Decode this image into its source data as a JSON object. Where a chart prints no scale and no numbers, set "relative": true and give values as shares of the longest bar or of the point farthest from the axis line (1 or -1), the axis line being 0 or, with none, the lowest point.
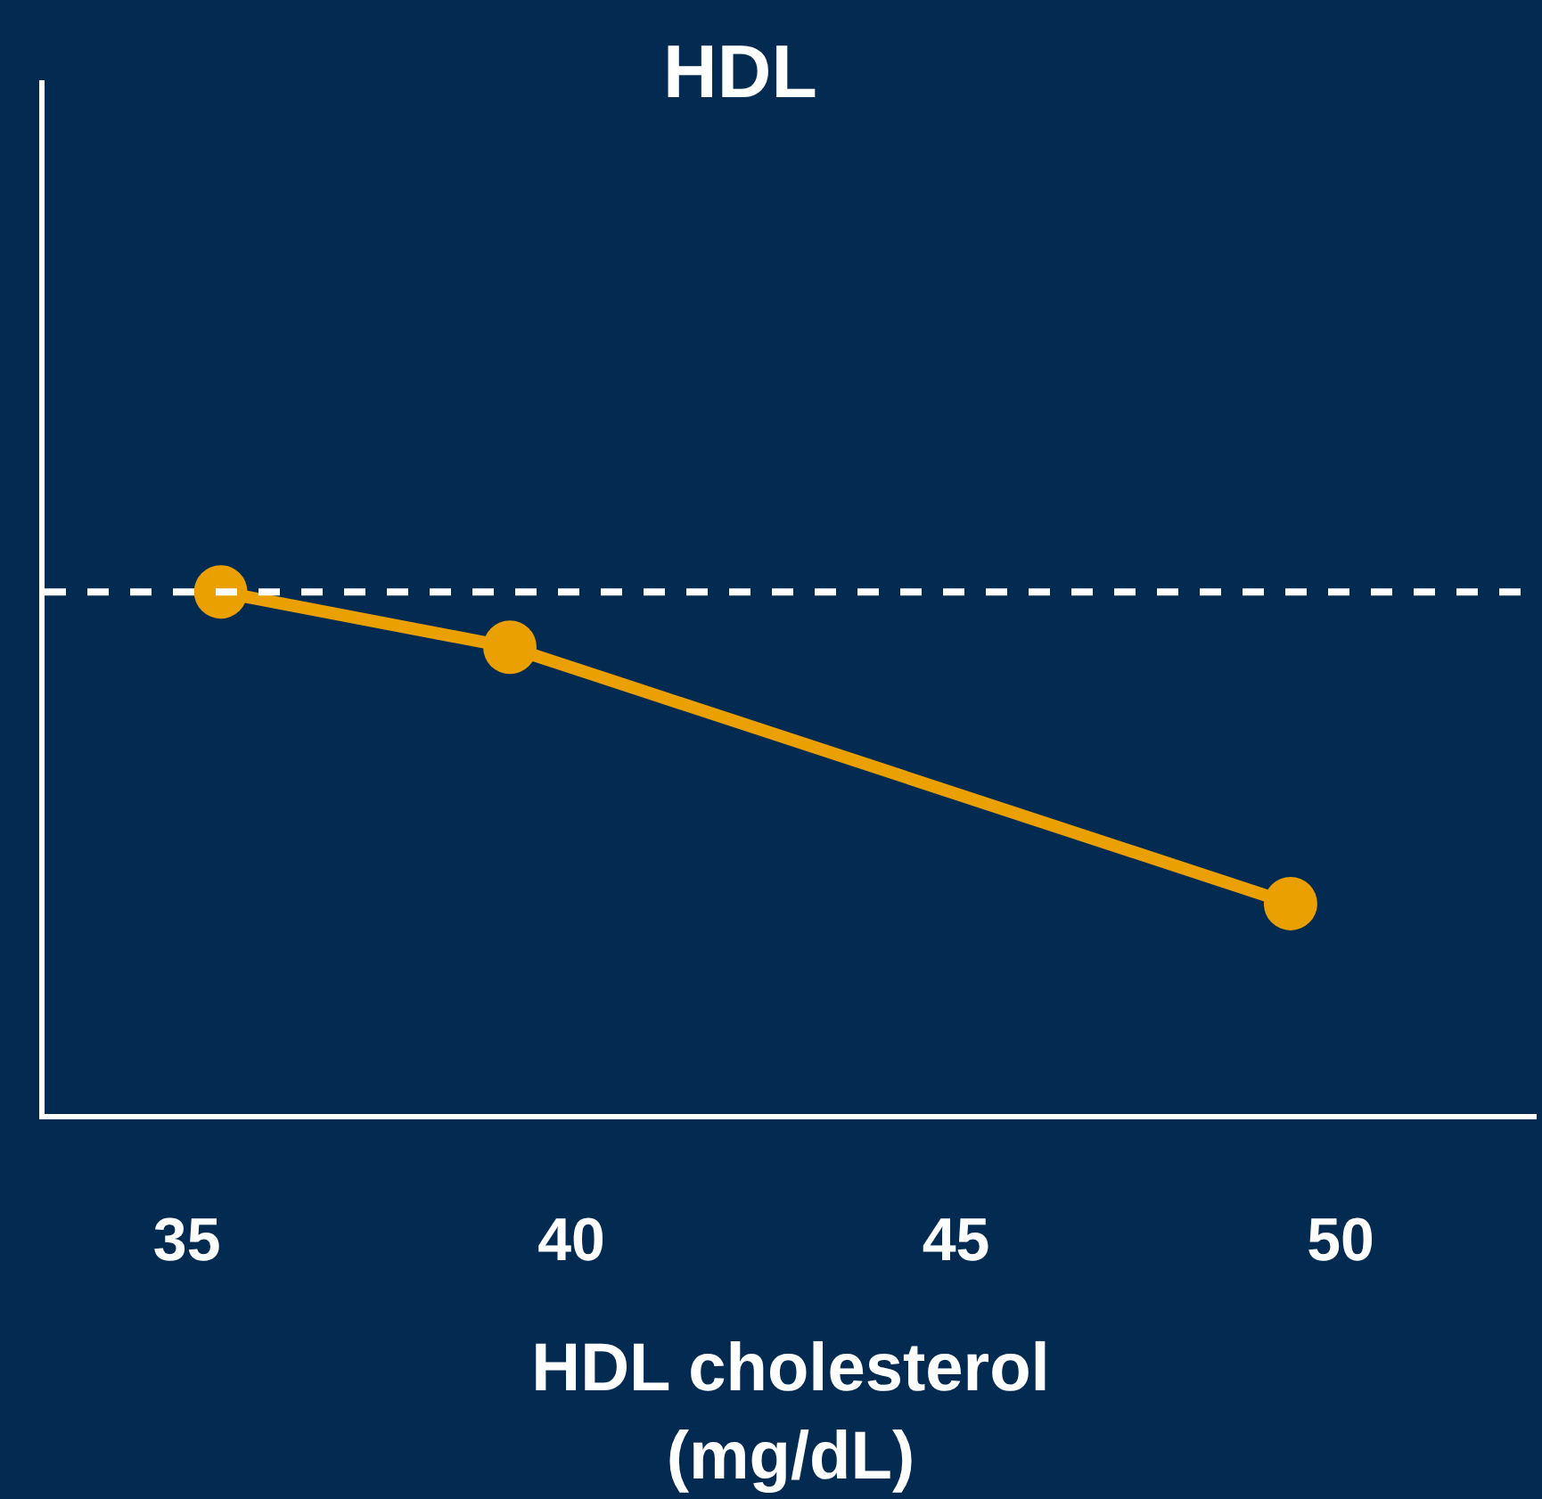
{
  "chart_data": {
    "type": "line",
    "title": "HDL",
    "xlabel": "HDL cholesterol\n(mg/dL)",
    "x": [
      35.44,
      39.2,
      49.35
    ],
    "series": [
      {
        "color": "#e9a000",
        "values": [
          1,
          0.894,
          0.403
        ]
      }
    ],
    "relative": true,
    "xlim": [
      33.15,
      52.55
    ],
    "xticks": [
      35,
      40,
      45,
      50
    ],
    "ref_lines": [
      {
        "axis": "y",
        "value": 1,
        "color": "#ffffff",
        "line_style": "dashed"
      }
    ],
    "tick_labels": "x",
    "marker": "circle",
    "line_style": "solid"
  }
}
